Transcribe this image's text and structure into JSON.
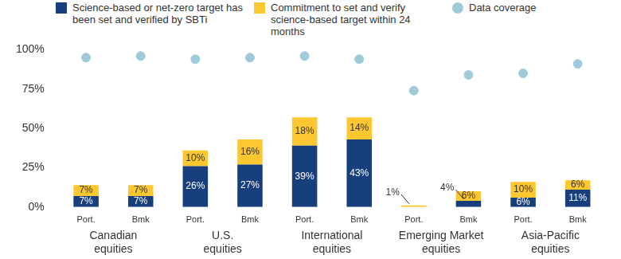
{
  "chart_data": {
    "type": "bar",
    "stacked": true,
    "grid": false,
    "legend": "top",
    "data_labels": true,
    "categories": [
      "Port.",
      "Bmk",
      "Port.",
      "Bmk",
      "Port.",
      "Bmk",
      "Port.",
      "Bmk",
      "Port.",
      "Bmk"
    ],
    "groups": [
      [
        "Canadian",
        "equities"
      ],
      [
        "U.S.",
        "equities"
      ],
      [
        "International",
        "equities"
      ],
      [
        "Emerging Market",
        "equities"
      ],
      [
        "Asia-Pacific",
        "equities"
      ]
    ],
    "ylim": [
      0,
      100
    ],
    "yticks": [
      {
        "value": 0,
        "label": "0%"
      },
      {
        "value": 25,
        "label": "25%"
      },
      {
        "value": 50,
        "label": "50%"
      },
      {
        "value": 75,
        "label": "75%"
      },
      {
        "value": 100,
        "label": "100%"
      }
    ],
    "series": [
      {
        "name": "Science-based or net-zero target has been set and verified by SBTi",
        "type": "bar",
        "color": "#173f7c",
        "values": [
          7,
          7,
          26,
          27,
          39,
          43,
          0,
          4,
          6,
          11
        ],
        "value_labels": [
          "7%",
          "7%",
          "26%",
          "27%",
          "39%",
          "43%",
          null,
          "4%",
          "6%",
          "11%"
        ]
      },
      {
        "name": "Commitment to set and verify science-based target within 24 months",
        "type": "bar",
        "color": "#fdc82f",
        "values": [
          7,
          7,
          10,
          16,
          18,
          14,
          1,
          6,
          10,
          6
        ],
        "value_labels": [
          "7%",
          "7%",
          "10%",
          "16%",
          "18%",
          "14%",
          "1%",
          "6%",
          "10%",
          "6%"
        ]
      },
      {
        "name": "Data coverage",
        "type": "scatter",
        "marker": "circle",
        "color": "#9fcad9",
        "values": [
          95,
          96,
          94,
          95,
          96,
          94,
          74,
          84,
          85,
          91
        ]
      }
    ]
  }
}
